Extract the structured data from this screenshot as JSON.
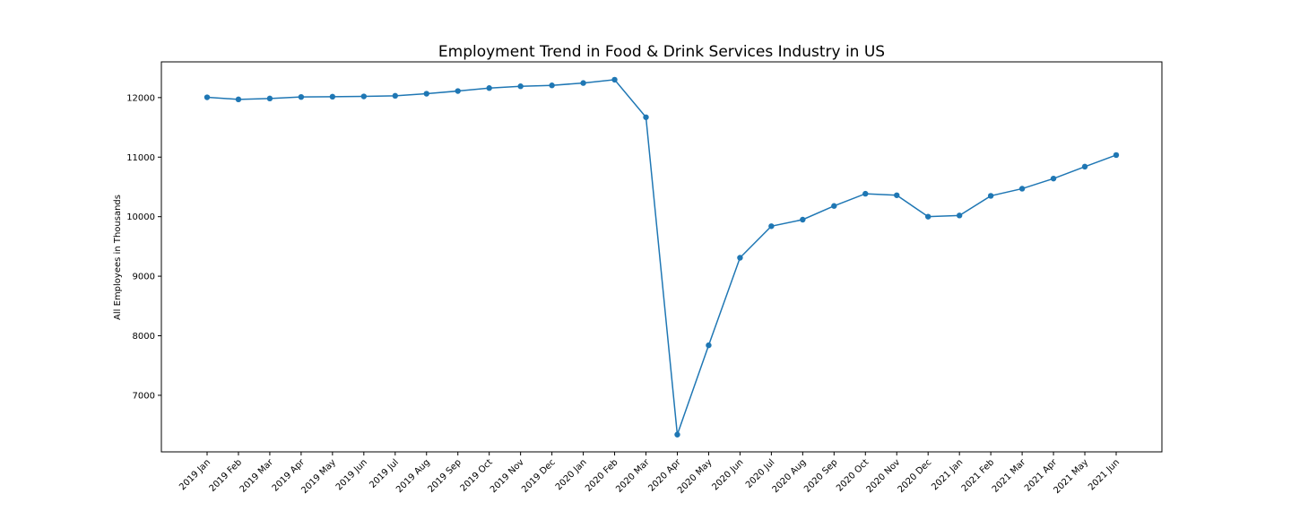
{
  "chart_data": {
    "type": "line",
    "title": "Employment Trend in Food & Drink Services Industry in US",
    "xlabel": "",
    "ylabel": "All Employees in Thousands",
    "categories": [
      "2019 Jan",
      "2019 Feb",
      "2019 Mar",
      "2019 Apr",
      "2019 May",
      "2019 Jun",
      "2019 Jul",
      "2019 Aug",
      "2019 Sep",
      "2019 Oct",
      "2019 Nov",
      "2019 Dec",
      "2020 Jan",
      "2020 Feb",
      "2020 Mar",
      "2020 Apr",
      "2020 May",
      "2020 Jun",
      "2020 Jul",
      "2020 Aug",
      "2020 Sep",
      "2020 Oct",
      "2020 Nov",
      "2020 Dec",
      "2021 Jan",
      "2021 Feb",
      "2021 Mar",
      "2021 Apr",
      "2021 May",
      "2021 Jun"
    ],
    "series": [
      {
        "values": [
          12005,
          11970,
          11985,
          12010,
          12015,
          12020,
          12030,
          12065,
          12110,
          12160,
          12190,
          12205,
          12245,
          12300,
          11670,
          6340,
          7840,
          9310,
          9840,
          9950,
          10180,
          10385,
          10360,
          10000,
          10020,
          10350,
          10470,
          10640,
          10840,
          11035
        ],
        "color": "#1f77b4",
        "marker": "circle"
      }
    ],
    "yticks": [
      7000,
      8000,
      9000,
      10000,
      11000,
      12000
    ],
    "ylim": [
      6050,
      12600
    ],
    "grid": false,
    "legend": "none"
  }
}
